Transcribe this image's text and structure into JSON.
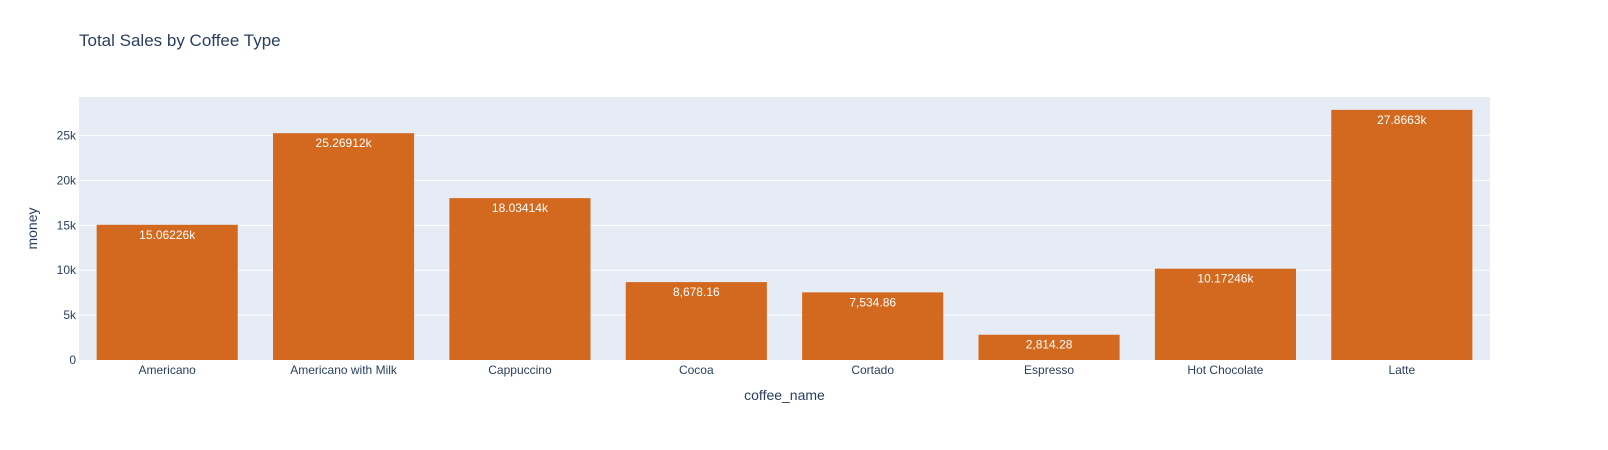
{
  "chart_data": {
    "type": "bar",
    "title": "Total Sales by Coffee Type",
    "xlabel": "coffee_name",
    "ylabel": "money",
    "categories": [
      "Americano",
      "Americano with Milk",
      "Cappuccino",
      "Cocoa",
      "Cortado",
      "Espresso",
      "Hot Chocolate",
      "Latte"
    ],
    "values": [
      15062.26,
      25269.12,
      18034.14,
      8678.16,
      7534.86,
      2814.28,
      10172.46,
      27866.3
    ],
    "data_labels": [
      "15.06226k",
      "25.26912k",
      "18.03414k",
      "8,678.16",
      "7,534.86",
      "2,814.28",
      "10.17246k",
      "27.8663k"
    ],
    "ylim": [
      0,
      29300
    ],
    "yticks": [
      0,
      5000,
      10000,
      15000,
      20000,
      25000
    ],
    "ytick_labels": [
      "0",
      "5k",
      "10k",
      "15k",
      "20k",
      "25k"
    ],
    "grid": true,
    "legend": "none",
    "colors": {
      "bar": "#d2691e",
      "plot_bg": "#e5ecf6",
      "grid": "#ffffff",
      "text": "#2a3f5f",
      "label_text": "#ffffff"
    }
  }
}
